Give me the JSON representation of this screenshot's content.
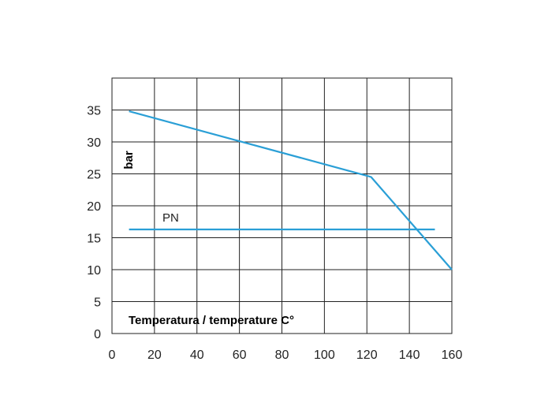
{
  "chart_data": {
    "type": "line",
    "title": "",
    "xlabel": "Temperatura / temperature C°",
    "ylabel": "bar",
    "xlim": [
      0,
      160
    ],
    "ylim": [
      0,
      40
    ],
    "x_ticks": [
      "0",
      "20",
      "40",
      "60",
      "80",
      "100",
      "120",
      "140",
      "160"
    ],
    "y_ticks": [
      "0",
      "5",
      "10",
      "15",
      "20",
      "25",
      "30",
      "35"
    ],
    "grid": true,
    "series": [
      {
        "name": "",
        "color": "#2a9fd6",
        "points": [
          [
            8,
            34.8
          ],
          [
            120,
            24.7
          ],
          [
            122,
            24.5
          ],
          [
            160,
            10
          ]
        ]
      },
      {
        "name": "PN",
        "color": "#2a9fd6",
        "points": [
          [
            8,
            16.3
          ],
          [
            152,
            16.3
          ]
        ]
      }
    ]
  }
}
